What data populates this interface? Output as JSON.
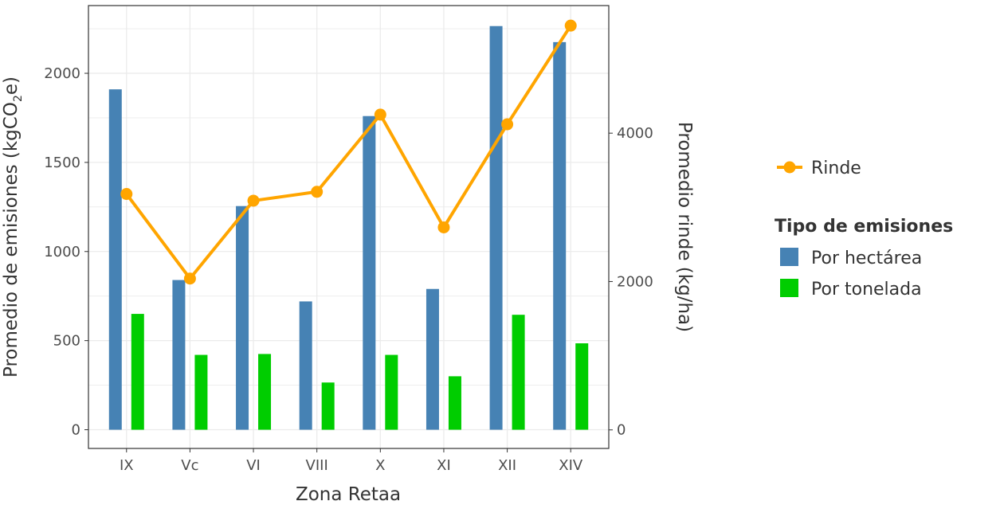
{
  "chart_data": {
    "type": "bar",
    "categories": [
      "IX",
      "Vc",
      "VI",
      "VIII",
      "X",
      "XI",
      "XII",
      "XIV"
    ],
    "series": [
      {
        "name": "Por hectárea",
        "axis": "left",
        "type": "bar",
        "color": "#4682B4",
        "values": [
          1910,
          840,
          1255,
          720,
          1760,
          790,
          2265,
          2175
        ]
      },
      {
        "name": "Por tonelada",
        "axis": "left",
        "type": "bar",
        "color": "#00CD00",
        "values": [
          650,
          420,
          425,
          265,
          420,
          300,
          645,
          485
        ]
      },
      {
        "name": "Rinde",
        "axis": "right",
        "type": "line",
        "color": "#FFA500",
        "values": [
          3180,
          2040,
          3090,
          3210,
          4250,
          2730,
          4120,
          5450
        ]
      }
    ],
    "xlabel": "Zona Retaa",
    "ylabel": {
      "main": "Promedio de emisiones (kgCO",
      "sub": "2",
      "tail": "e)"
    },
    "y2label": "Promedio rinde (kg/ha)",
    "ylim": [
      -105,
      2380
    ],
    "y2lim": [
      -250,
      5720
    ],
    "yticks": [
      "0",
      "500",
      "1000",
      "1500",
      "2000"
    ],
    "y2ticks": [
      "0",
      "2000",
      "4000"
    ],
    "grid": true,
    "legend": {
      "position": "right",
      "line_entry": "Rinde",
      "title": "Tipo de emisiones",
      "bar_entries": [
        "Por hectárea",
        "Por tonelada"
      ]
    }
  }
}
